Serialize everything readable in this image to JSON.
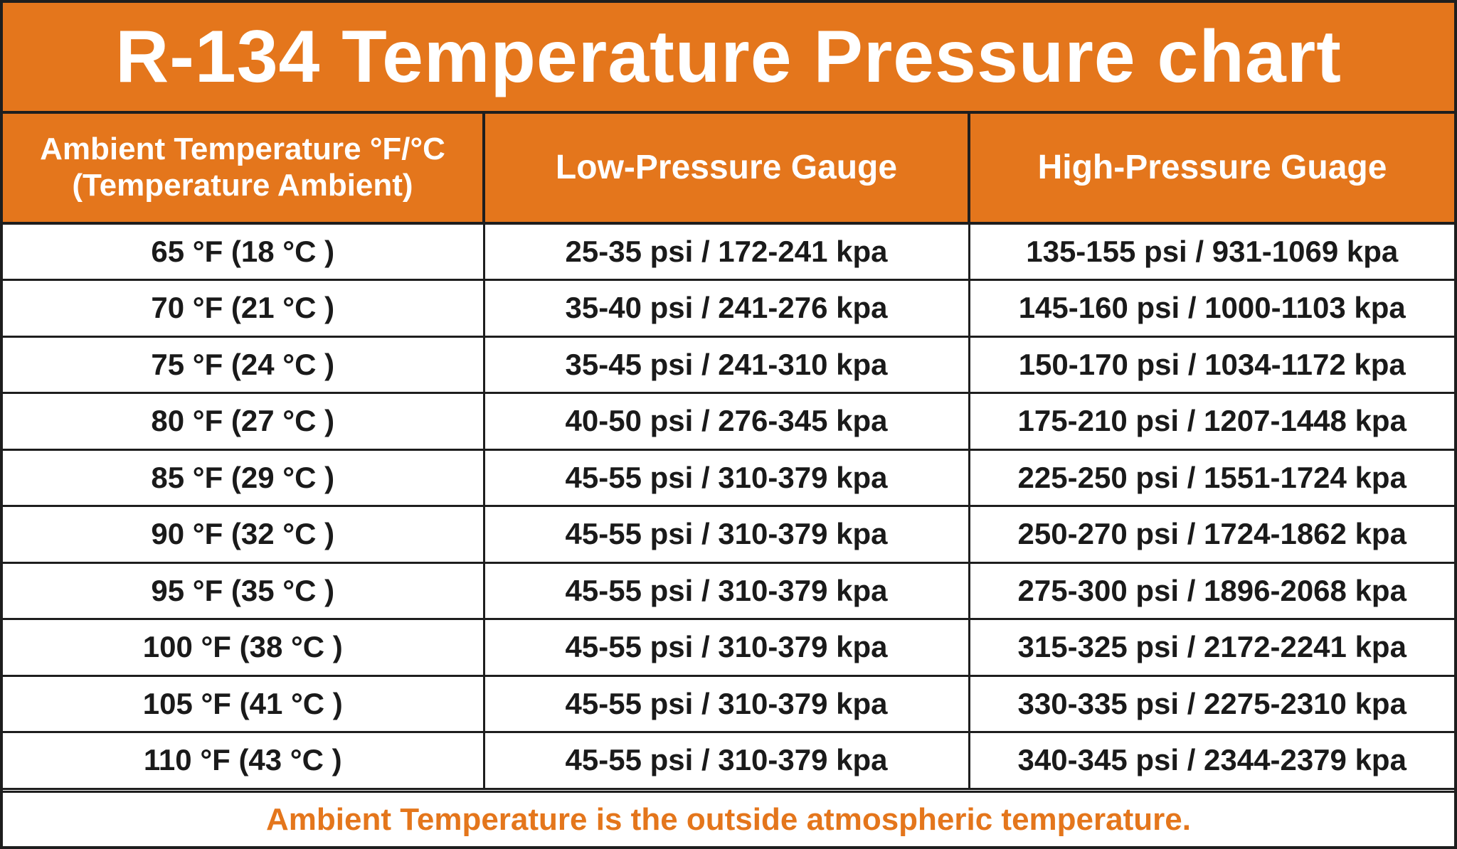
{
  "title": "R-134 Temperature Pressure chart",
  "colors": {
    "accent": "#e4761c",
    "border": "#1e1e1e",
    "text": "#1a1a1a",
    "header_text": "#ffffff"
  },
  "headers": {
    "ambient_line1": "Ambient Temperature °F/°C",
    "ambient_line2": "(Temperature Ambient)",
    "low": "Low-Pressure Gauge",
    "high": "High-Pressure Guage"
  },
  "rows": [
    {
      "ambient": "65 °F (18 °C )",
      "low": "25-35 psi / 172-241 kpa",
      "high": "135-155 psi / 931-1069 kpa"
    },
    {
      "ambient": "70 °F (21 °C )",
      "low": "35-40 psi / 241-276 kpa",
      "high": "145-160 psi / 1000-1103 kpa"
    },
    {
      "ambient": "75 °F (24 °C )",
      "low": "35-45 psi / 241-310 kpa",
      "high": "150-170 psi / 1034-1172 kpa"
    },
    {
      "ambient": "80 °F (27 °C )",
      "low": "40-50 psi / 276-345 kpa",
      "high": "175-210 psi / 1207-1448 kpa"
    },
    {
      "ambient": "85 °F (29 °C )",
      "low": "45-55 psi / 310-379 kpa",
      "high": "225-250 psi / 1551-1724 kpa"
    },
    {
      "ambient": "90 °F (32 °C )",
      "low": "45-55 psi / 310-379 kpa",
      "high": "250-270 psi / 1724-1862 kpa"
    },
    {
      "ambient": "95 °F (35 °C )",
      "low": "45-55 psi / 310-379 kpa",
      "high": "275-300 psi / 1896-2068 kpa"
    },
    {
      "ambient": "100 °F (38 °C )",
      "low": "45-55 psi / 310-379 kpa",
      "high": "315-325 psi / 2172-2241 kpa"
    },
    {
      "ambient": "105 °F (41 °C )",
      "low": "45-55 psi / 310-379 kpa",
      "high": "330-335 psi / 2275-2310 kpa"
    },
    {
      "ambient": "110 °F (43 °C )",
      "low": "45-55 psi / 310-379 kpa",
      "high": "340-345 psi / 2344-2379 kpa"
    }
  ],
  "footer": "Ambient Temperature is the outside atmospheric temperature."
}
